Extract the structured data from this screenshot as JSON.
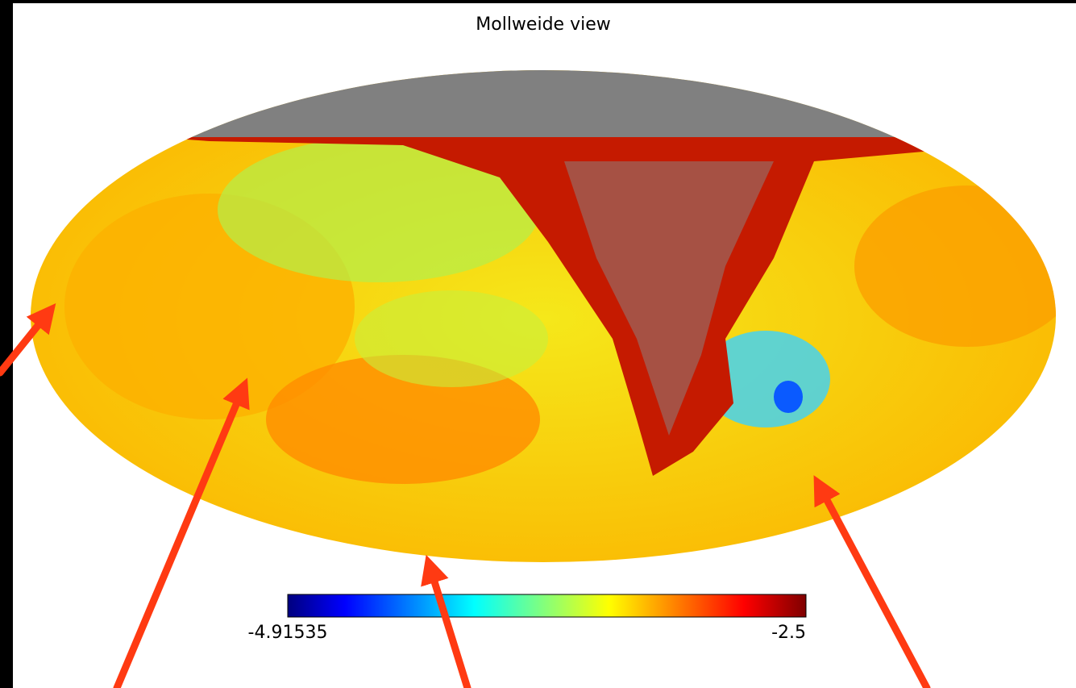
{
  "title": "Mollweide view",
  "colorbar": {
    "min": -4.91535,
    "max": -2.5,
    "colormap": "jet"
  }
}
